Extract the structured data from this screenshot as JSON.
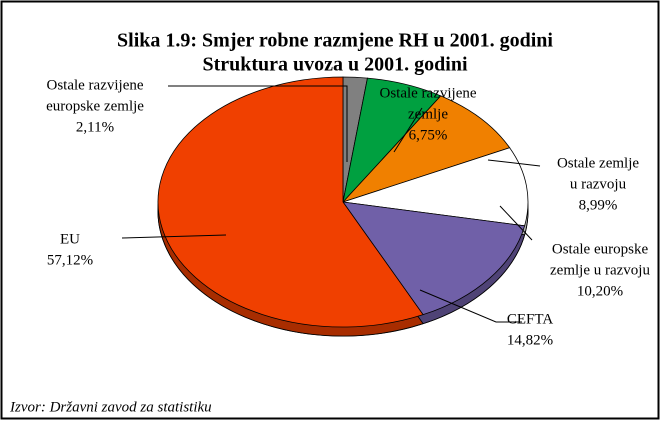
{
  "chart_data": {
    "type": "pie",
    "title": "Slika 1.9: Smjer robne razmjene RH u 2001. godini",
    "subtitle": "Struktura uvoza u 2001. godini",
    "categories": [
      [
        "Ostale razvijene",
        "europske zemlje"
      ],
      [
        "Ostale razvijene",
        "zemlje"
      ],
      [
        "Ostale zemlje",
        "u razvoju"
      ],
      [
        "Ostale europske",
        "zemlje u razvoju"
      ],
      [
        "CEFTA"
      ],
      [
        "EU"
      ]
    ],
    "values": [
      2.11,
      6.75,
      8.99,
      10.2,
      14.82,
      57.12
    ],
    "value_labels": [
      "2,11%",
      "6,75%",
      "8,99%",
      "10,20%",
      "14,82%",
      "57,12%"
    ],
    "colors": [
      "#808080",
      "#00a040",
      "#f08000",
      "#ffffff",
      "#7060a8",
      "#f04000"
    ],
    "source": "Izvor: Državni zavod za statistiku"
  }
}
